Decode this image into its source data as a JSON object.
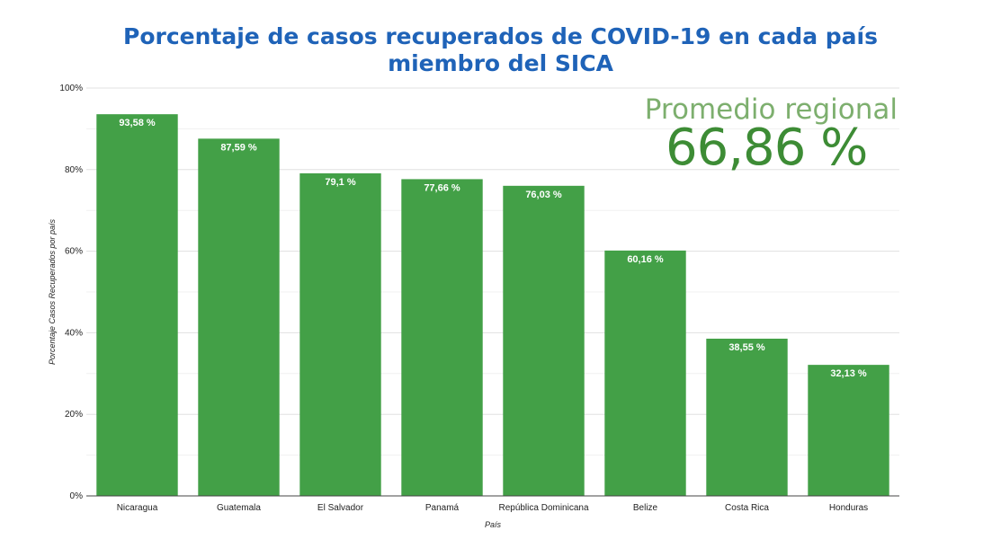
{
  "chart_data": {
    "type": "bar",
    "title_lines": [
      "Porcentaje de casos recuperados de COVID-19 en cada país",
      "miembro del SICA"
    ],
    "xlabel": "País",
    "ylabel": "Porcentaje Casos Recuperados por país",
    "ylim": [
      0,
      100
    ],
    "yticks": [
      0,
      20,
      40,
      60,
      80,
      100
    ],
    "ytick_labels": [
      "0%",
      "20%",
      "40%",
      "60%",
      "80%",
      "100%"
    ],
    "grid": true,
    "categories": [
      "Nicaragua",
      "Guatemala",
      "El Salvador",
      "Panamá",
      "República Dominicana",
      "Belize",
      "Costa Rica",
      "Honduras"
    ],
    "values": [
      93.58,
      87.59,
      79.1,
      77.66,
      76.03,
      60.16,
      38.55,
      32.13
    ],
    "data_labels": [
      "93,58 %",
      "87,59 %",
      "79,1 %",
      "77,66 %",
      "76,03 %",
      "60,16 %",
      "38,55 %",
      "32,13 %"
    ],
    "bar_color": "#43a047",
    "annotation": {
      "label": "Promedio regional",
      "value": "66,86 %"
    }
  }
}
